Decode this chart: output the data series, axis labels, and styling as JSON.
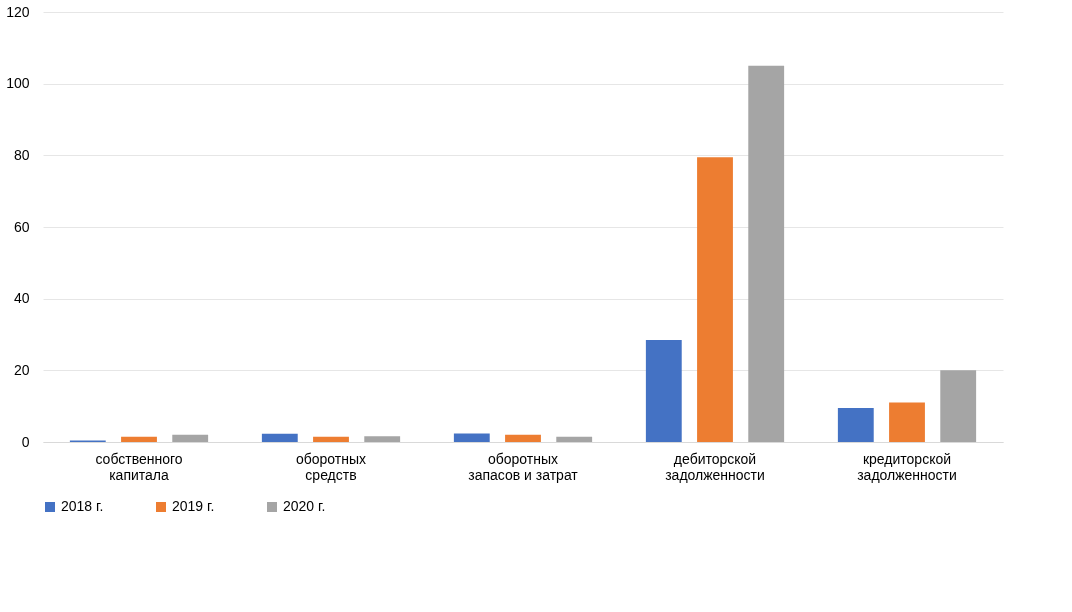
{
  "chart_data": {
    "type": "bar",
    "categories": [
      "собственного\nкапитала",
      "оборотных\nсредств",
      "оборотных\nзапасов и затрат",
      "дебиторской\nзадолженности",
      "кредиторской\nзадолженности"
    ],
    "series": [
      {
        "name": "2018 г.",
        "color": "#4472c4",
        "values": [
          0.4,
          2.3,
          2.4,
          28.5,
          9.5
        ]
      },
      {
        "name": "2019 г.",
        "color": "#ed7d31",
        "values": [
          1.5,
          1.5,
          2,
          79.5,
          11
        ]
      },
      {
        "name": "2020 г.",
        "color": "#a5a5a5",
        "values": [
          2,
          1.6,
          1.5,
          105,
          20
        ]
      }
    ],
    "ylim": [
      0,
      120
    ],
    "yticks": [
      0,
      20,
      40,
      60,
      80,
      100,
      120
    ],
    "grid": "y",
    "legend": "bottom"
  }
}
